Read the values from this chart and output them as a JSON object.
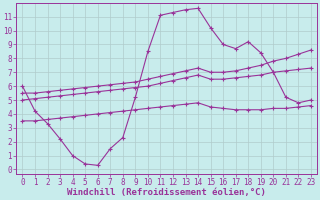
{
  "bg_color": "#c8ecec",
  "grid_color": "#b0cccc",
  "line_color": "#993399",
  "xlim": [
    -0.5,
    23.5
  ],
  "ylim": [
    -0.3,
    12.0
  ],
  "xticks": [
    0,
    1,
    2,
    3,
    4,
    5,
    6,
    7,
    8,
    9,
    10,
    11,
    12,
    13,
    14,
    15,
    16,
    17,
    18,
    19,
    20,
    21,
    22,
    23
  ],
  "yticks": [
    0,
    1,
    2,
    3,
    4,
    5,
    6,
    7,
    8,
    9,
    10,
    11
  ],
  "curve1_x": [
    0,
    1,
    2,
    3,
    4,
    5,
    6,
    7,
    8,
    9,
    10,
    11,
    12,
    13,
    14,
    15,
    16,
    17,
    18,
    19,
    20,
    21,
    22,
    23
  ],
  "curve1_y": [
    6.0,
    4.2,
    3.3,
    2.2,
    1.0,
    0.4,
    0.3,
    1.5,
    2.3,
    5.2,
    8.5,
    11.1,
    11.3,
    11.5,
    11.6,
    10.2,
    9.0,
    8.7,
    9.2,
    8.4,
    7.0,
    5.2,
    4.8,
    5.0
  ],
  "curve2_x": [
    0,
    1,
    2,
    3,
    4,
    5,
    6,
    7,
    8,
    9,
    10,
    11,
    12,
    13,
    14,
    15,
    16,
    17,
    18,
    19,
    20,
    21,
    22,
    23
  ],
  "curve2_y": [
    3.5,
    3.5,
    3.6,
    3.7,
    3.8,
    3.9,
    4.0,
    4.1,
    4.2,
    4.3,
    4.4,
    4.5,
    4.6,
    4.7,
    4.8,
    4.5,
    4.4,
    4.3,
    4.3,
    4.3,
    4.4,
    4.4,
    4.5,
    4.6
  ],
  "curve3_x": [
    0,
    1,
    2,
    3,
    4,
    5,
    6,
    7,
    8,
    9,
    10,
    11,
    12,
    13,
    14,
    15,
    16,
    17,
    18,
    19,
    20,
    21,
    22,
    23
  ],
  "curve3_y": [
    5.0,
    5.1,
    5.2,
    5.3,
    5.4,
    5.5,
    5.6,
    5.7,
    5.8,
    5.9,
    6.0,
    6.2,
    6.4,
    6.6,
    6.8,
    6.5,
    6.5,
    6.6,
    6.7,
    6.8,
    7.0,
    7.1,
    7.2,
    7.3
  ],
  "curve4_x": [
    0,
    1,
    2,
    3,
    4,
    5,
    6,
    7,
    8,
    9,
    10,
    11,
    12,
    13,
    14,
    15,
    16,
    17,
    18,
    19,
    20,
    21,
    22,
    23
  ],
  "curve4_y": [
    5.5,
    5.5,
    5.6,
    5.7,
    5.8,
    5.9,
    6.0,
    6.1,
    6.2,
    6.3,
    6.5,
    6.7,
    6.9,
    7.1,
    7.3,
    7.0,
    7.0,
    7.1,
    7.3,
    7.5,
    7.8,
    8.0,
    8.3,
    8.6
  ],
  "xlabel": "Windchill (Refroidissement éolien,°C)",
  "tick_fontsize": 5.5,
  "label_fontsize": 6.5
}
